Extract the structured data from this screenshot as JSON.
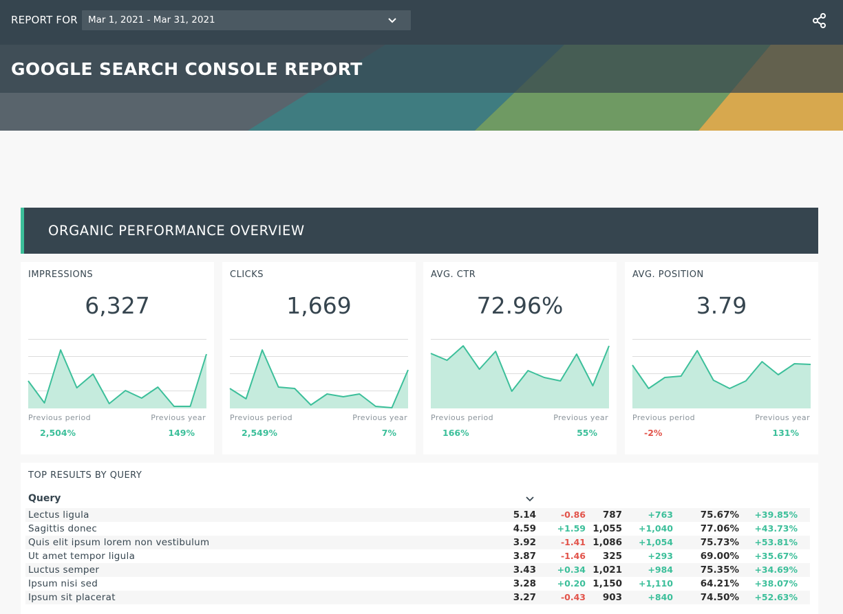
{
  "header": {
    "report_for_label": "REPORT FOR",
    "date_range": "Mar 1, 2021 - Mar 31, 2021",
    "title": "GOOGLE SEARCH CONSOLE REPORT"
  },
  "section": {
    "title": "ORGANIC PERFORMANCE OVERVIEW"
  },
  "colors": {
    "accent": "#3cbf9a",
    "negative": "#e2534a",
    "dark": "#36454f"
  },
  "kpis": [
    {
      "label": "IMPRESSIONS",
      "value": "6,327",
      "prev_period_label": "Previous period",
      "prev_period_value": "2,504%",
      "prev_period_sign": "pos",
      "prev_year_label": "Previous year",
      "prev_year_value": "149%",
      "prev_year_sign": "pos",
      "spark": [
        40,
        8,
        85,
        30,
        50,
        7,
        26,
        15,
        31,
        3,
        3,
        79
      ]
    },
    {
      "label": "CLICKS",
      "value": "1,669",
      "prev_period_label": "Previous period",
      "prev_period_value": "2,549%",
      "prev_period_sign": "pos",
      "prev_year_label": "Previous year",
      "prev_year_value": "7%",
      "prev_year_sign": "pos",
      "spark": [
        29,
        14,
        85,
        31,
        29,
        5,
        21,
        17,
        21,
        3,
        1,
        56
      ]
    },
    {
      "label": "AVG. CTR",
      "value": "72.96%",
      "prev_period_label": "Previous period",
      "prev_period_value": "166%",
      "prev_period_sign": "pos",
      "prev_year_label": "Previous year",
      "prev_year_value": "55%",
      "prev_year_sign": "pos",
      "spark": [
        80,
        70,
        91,
        57,
        83,
        25,
        55,
        45,
        40,
        79,
        33,
        91
      ]
    },
    {
      "label": "AVG. POSITION",
      "value": "3.79",
      "prev_period_label": "Previous period",
      "prev_period_value": "-2%",
      "prev_period_sign": "neg",
      "prev_year_label": "Previous year",
      "prev_year_value": "131%",
      "prev_year_sign": "pos",
      "spark": [
        63,
        29,
        45,
        47,
        84,
        41,
        29,
        40,
        68,
        49,
        65,
        64
      ]
    }
  ],
  "table": {
    "title": "TOP RESULTS BY QUERY",
    "query_header": "Query",
    "rows": [
      {
        "query": "Lectus ligula",
        "position": "5.14",
        "position_change": "-0.86",
        "clicks": "787",
        "clicks_change": "+763",
        "ctr": "75.67%",
        "ctr_change": "+39.85%"
      },
      {
        "query": "Sagittis donec",
        "position": "4.59",
        "position_change": "+1.59",
        "clicks": "1,055",
        "clicks_change": "+1,040",
        "ctr": "77.06%",
        "ctr_change": "+43.73%"
      },
      {
        "query": "Quis elit ipsum lorem non vestibulum",
        "position": "3.92",
        "position_change": "-1.41",
        "clicks": "1,086",
        "clicks_change": "+1,054",
        "ctr": "75.73%",
        "ctr_change": "+53.81%"
      },
      {
        "query": "Ut amet tempor ligula",
        "position": "3.87",
        "position_change": "-1.46",
        "clicks": "325",
        "clicks_change": "+293",
        "ctr": "69.00%",
        "ctr_change": "+35.67%"
      },
      {
        "query": "Luctus semper",
        "position": "3.43",
        "position_change": "+0.34",
        "clicks": "1,021",
        "clicks_change": "+984",
        "ctr": "75.35%",
        "ctr_change": "+34.69%"
      },
      {
        "query": "Ipsum nisi sed",
        "position": "3.28",
        "position_change": "+0.20",
        "clicks": "1,150",
        "clicks_change": "+1,110",
        "ctr": "64.21%",
        "ctr_change": "+38.07%"
      },
      {
        "query": "Ipsum sit placerat",
        "position": "3.27",
        "position_change": "-0.43",
        "clicks": "903",
        "clicks_change": "+840",
        "ctr": "74.50%",
        "ctr_change": "+52.63%"
      }
    ]
  }
}
